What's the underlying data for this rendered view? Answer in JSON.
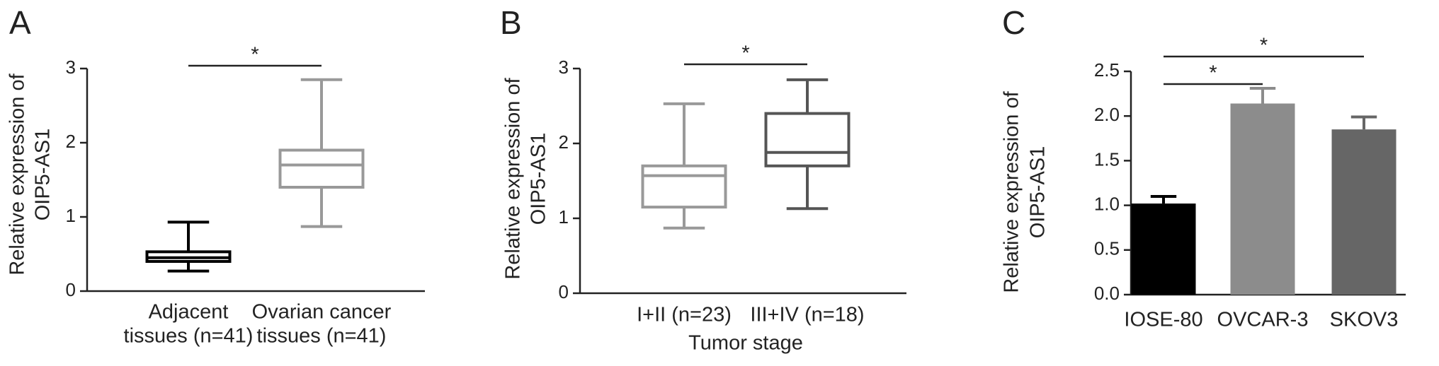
{
  "chart_data": [
    {
      "type": "box",
      "panel": "A",
      "ylabel": [
        "Relative expression of",
        "OIP5-AS1"
      ],
      "categories": [
        [
          "Adjacent",
          "tissues (n=41)"
        ],
        [
          "Ovarian cancer",
          "tissues (n=41)"
        ]
      ],
      "boxes": [
        {
          "min": 0.27,
          "q1": 0.4,
          "median": 0.45,
          "q3": 0.53,
          "max": 0.93,
          "color": "#000000"
        },
        {
          "min": 0.87,
          "q1": 1.4,
          "median": 1.7,
          "q3": 1.9,
          "max": 2.85,
          "color": "#999999"
        }
      ],
      "ylim": [
        0,
        3
      ],
      "yticks": [
        0,
        1,
        2,
        3
      ],
      "annotations": [
        {
          "text": "*",
          "between": [
            0,
            1
          ]
        }
      ]
    },
    {
      "type": "box",
      "panel": "B",
      "ylabel": [
        "Relative expression of",
        "OIP5-AS1"
      ],
      "xlabel": "Tumor stage",
      "categories": [
        [
          "I+II (n=23)"
        ],
        [
          "III+IV (n=18)"
        ]
      ],
      "boxes": [
        {
          "min": 0.87,
          "q1": 1.15,
          "median": 1.57,
          "q3": 1.7,
          "max": 2.53,
          "color": "#999999"
        },
        {
          "min": 1.13,
          "q1": 1.7,
          "median": 1.88,
          "q3": 2.4,
          "max": 2.85,
          "color": "#555555"
        }
      ],
      "ylim": [
        0,
        3
      ],
      "yticks": [
        0,
        1,
        2,
        3
      ],
      "annotations": [
        {
          "text": "*",
          "between": [
            0,
            1
          ]
        }
      ]
    },
    {
      "type": "bar",
      "panel": "C",
      "ylabel": [
        "Relative expression of",
        "OIP5-AS1"
      ],
      "categories": [
        [
          "IOSE-80"
        ],
        [
          "OVCAR-3"
        ],
        [
          "SKOV3"
        ]
      ],
      "values": [
        1.02,
        2.14,
        1.85
      ],
      "errors": [
        0.08,
        0.17,
        0.14
      ],
      "colors": [
        "#000000",
        "#8c8c8c",
        "#666666"
      ],
      "ylim": [
        0,
        2.5
      ],
      "yticks": [
        {
          "value": 0,
          "label": "0.0"
        },
        0.5,
        {
          "value": 1,
          "label": "1.0"
        },
        1.5,
        {
          "value": 2,
          "label": "2.0"
        },
        2.5
      ],
      "annotations": [
        {
          "text": "*",
          "between": [
            0,
            1
          ]
        },
        {
          "text": "*",
          "between": [
            0,
            2
          ]
        }
      ]
    }
  ]
}
